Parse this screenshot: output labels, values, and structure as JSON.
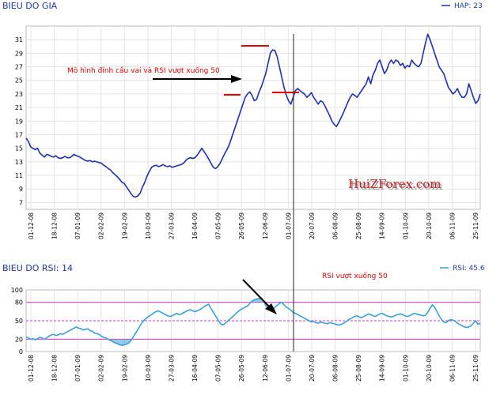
{
  "chart_data": [
    {
      "type": "line",
      "title": "BIEU DO GIA",
      "legend": {
        "label": "HAP: 23",
        "position": "top-right"
      },
      "color": "#1f2fb0",
      "ylim": [
        6,
        33
      ],
      "yticks": [
        7,
        9,
        11,
        13,
        15,
        17,
        19,
        21,
        23,
        25,
        27,
        29,
        31
      ],
      "grid": true,
      "x_labels": [
        "01-12-08",
        "18-12-08",
        "07-01-09",
        "02-02-09",
        "19-02-09",
        "10-03-09",
        "27-03-09",
        "16-04-09",
        "07-05-09",
        "26-05-09",
        "12-06-09",
        "01-07-09",
        "20-07-09",
        "06-08-09",
        "25-08-09",
        "14-09-09",
        "01-10-09",
        "20-10-09",
        "06-11-09",
        "25-11-09"
      ],
      "points": 200,
      "values": [
        16.5,
        16.0,
        15.2,
        15.0,
        14.8,
        15.0,
        14.3,
        14.0,
        13.7,
        14.1,
        14.0,
        13.8,
        13.7,
        13.9,
        13.6,
        13.5,
        13.6,
        13.8,
        13.6,
        13.6,
        13.8,
        14.1,
        13.9,
        13.8,
        13.6,
        13.4,
        13.2,
        13.1,
        13.2,
        13.0,
        13.1,
        13.0,
        12.9,
        12.8,
        12.5,
        12.3,
        12.0,
        11.8,
        11.4,
        11.1,
        10.8,
        10.4,
        10.0,
        9.8,
        9.3,
        8.8,
        8.3,
        7.9,
        7.8,
        8.0,
        8.4,
        9.3,
        10.0,
        10.9,
        11.6,
        12.2,
        12.4,
        12.5,
        12.3,
        12.4,
        12.6,
        12.4,
        12.3,
        12.4,
        12.2,
        12.3,
        12.4,
        12.5,
        12.6,
        12.8,
        13.2,
        13.5,
        13.6,
        13.5,
        13.6,
        14.0,
        14.5,
        15.0,
        14.5,
        14.0,
        13.4,
        12.8,
        12.2,
        12.0,
        12.3,
        12.8,
        13.5,
        14.2,
        14.8,
        15.5,
        16.5,
        17.5,
        18.5,
        19.5,
        20.5,
        21.5,
        22.5,
        23.0,
        23.3,
        22.8,
        22.0,
        22.2,
        23.2,
        24.0,
        25.0,
        26.0,
        27.5,
        29.0,
        29.5,
        29.4,
        28.5,
        27.0,
        25.5,
        24.0,
        22.8,
        22.0,
        21.5,
        22.5,
        23.5,
        23.8,
        23.5,
        23.2,
        23.0,
        22.5,
        22.8,
        23.2,
        22.5,
        22.0,
        21.5,
        22.0,
        21.8,
        21.2,
        20.5,
        19.8,
        19.0,
        18.5,
        18.2,
        18.8,
        19.5,
        20.2,
        21.0,
        21.8,
        22.5,
        23.0,
        22.8,
        22.5,
        23.0,
        23.5,
        24.0,
        24.5,
        25.5,
        24.5,
        25.8,
        26.5,
        27.5,
        28.0,
        27.0,
        26.0,
        26.5,
        27.5,
        28.0,
        27.5,
        28.0,
        27.8,
        27.2,
        27.5,
        26.8,
        27.2,
        27.0,
        28.0,
        27.5,
        27.2,
        27.0,
        27.5,
        29.0,
        30.5,
        31.8,
        31.0,
        30.0,
        29.0,
        28.0,
        27.0,
        26.5,
        26.0,
        25.0,
        24.0,
        23.5,
        23.0,
        23.3,
        23.8,
        23.0,
        22.5,
        22.5,
        23.0,
        24.5,
        23.5,
        22.5,
        21.6,
        22.0,
        23.0
      ],
      "annotations": [
        {
          "text": "Mô hình đỉnh cầu vai và RSI vượt xuống 50"
        }
      ],
      "watermark": "HuiZForex.com"
    },
    {
      "type": "line",
      "title": "BIEU DO RSI: 14",
      "legend": {
        "label": "RSI: 45.6",
        "position": "top-right"
      },
      "color": "#3aa0d8",
      "ylim": [
        0,
        100
      ],
      "yticks": [
        0,
        20,
        50,
        80,
        100
      ],
      "reference_lines": [
        20,
        50,
        80
      ],
      "grid": true,
      "x_labels": [
        "01-12-08",
        "18-12-08",
        "07-01-09",
        "02-02-09",
        "19-02-09",
        "10-03-09",
        "27-03-09",
        "16-04-09",
        "07-05-09",
        "26-05-09",
        "12-06-09",
        "01-07-09",
        "20-07-09",
        "06-08-09",
        "25-08-09",
        "14-09-09",
        "01-10-09",
        "20-10-09",
        "06-11-09",
        "25-11-09"
      ],
      "points": 200,
      "values": [
        24,
        22,
        20,
        21,
        19,
        21,
        23,
        22,
        20,
        22,
        25,
        27,
        28,
        26,
        27,
        29,
        28,
        30,
        32,
        34,
        36,
        38,
        40,
        38,
        37,
        35,
        36,
        37,
        34,
        33,
        30,
        29,
        28,
        25,
        23,
        22,
        20,
        18,
        16,
        14,
        13,
        11,
        10,
        11,
        12,
        14,
        18,
        24,
        30,
        36,
        42,
        48,
        52,
        55,
        58,
        60,
        63,
        65,
        66,
        64,
        62,
        60,
        58,
        57,
        58,
        60,
        62,
        60,
        61,
        63,
        65,
        67,
        68,
        66,
        65,
        66,
        68,
        70,
        73,
        75,
        77,
        70,
        64,
        58,
        52,
        46,
        43,
        45,
        48,
        52,
        55,
        58,
        62,
        65,
        68,
        70,
        72,
        74,
        78,
        82,
        84,
        85,
        86,
        87,
        82,
        75,
        70,
        66,
        68,
        72,
        75,
        78,
        80,
        76,
        72,
        70,
        67,
        64,
        62,
        60,
        58,
        56,
        54,
        52,
        50,
        48,
        49,
        47,
        46,
        48,
        47,
        46,
        45,
        47,
        46,
        45,
        44,
        43,
        44,
        46,
        48,
        51,
        53,
        55,
        57,
        58,
        56,
        55,
        57,
        59,
        61,
        60,
        58,
        57,
        59,
        61,
        62,
        60,
        58,
        57,
        56,
        57,
        59,
        60,
        61,
        60,
        58,
        57,
        58,
        60,
        62,
        61,
        60,
        59,
        58,
        59,
        64,
        70,
        76,
        72,
        65,
        58,
        52,
        48,
        47,
        50,
        52,
        51,
        49,
        46,
        44,
        42,
        40,
        39,
        40,
        42,
        46,
        50,
        44,
        46
      ],
      "annotations": [
        {
          "text": "RSI  vượt xuống 50"
        }
      ]
    }
  ]
}
